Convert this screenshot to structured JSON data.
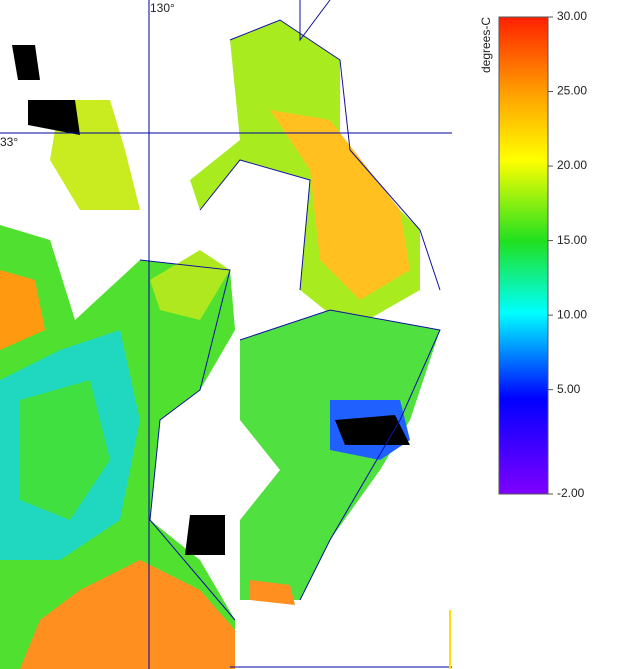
{
  "map": {
    "grid_labels": {
      "lon": "130°",
      "lat": "33°"
    },
    "colorbar": {
      "title": "degrees-C",
      "range": [
        -2,
        30
      ],
      "ticks": [
        {
          "value": 30,
          "label": "30.00"
        },
        {
          "value": 25,
          "label": "25.00"
        },
        {
          "value": 20,
          "label": "20.00"
        },
        {
          "value": 15,
          "label": "15.00"
        },
        {
          "value": 10,
          "label": "10.00"
        },
        {
          "value": 5,
          "label": "5.00"
        },
        {
          "value": -2,
          "label": "-2.00"
        }
      ]
    }
  }
}
